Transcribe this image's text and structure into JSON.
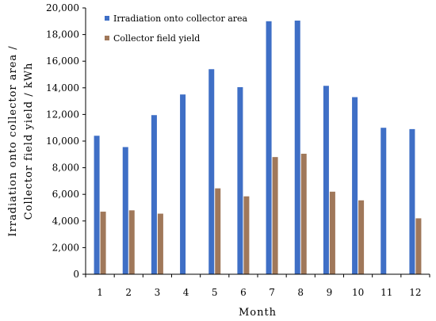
{
  "chart_data": {
    "type": "bar",
    "xlabel": "Month",
    "ylabel_lines": [
      "Irradiation onto collector area /",
      "Collector field yield / kWh"
    ],
    "categories": [
      "1",
      "2",
      "3",
      "4",
      "5",
      "6",
      "7",
      "8",
      "9",
      "10",
      "11",
      "12"
    ],
    "ylim": [
      0,
      20000
    ],
    "yticks": [
      0,
      2000,
      4000,
      6000,
      8000,
      10000,
      12000,
      14000,
      16000,
      18000,
      20000
    ],
    "ytick_labels": [
      "0",
      "2,000",
      "4,000",
      "6,000",
      "8,000",
      "10,000",
      "12,000",
      "14,000",
      "16,000",
      "18,000",
      "20,000"
    ],
    "grid": false,
    "legend_position": "top-left",
    "series": [
      {
        "name": "Irradiation onto collector area",
        "color": "#3f6fc6",
        "values": [
          10400,
          9550,
          11950,
          13500,
          15400,
          14050,
          19000,
          19050,
          14150,
          13300,
          11000,
          10900
        ]
      },
      {
        "name": "Collector field yield",
        "color": "#a0785a",
        "values": [
          4700,
          4800,
          4550,
          0,
          6450,
          5850,
          8800,
          9050,
          6200,
          5550,
          0,
          4200
        ]
      }
    ]
  }
}
